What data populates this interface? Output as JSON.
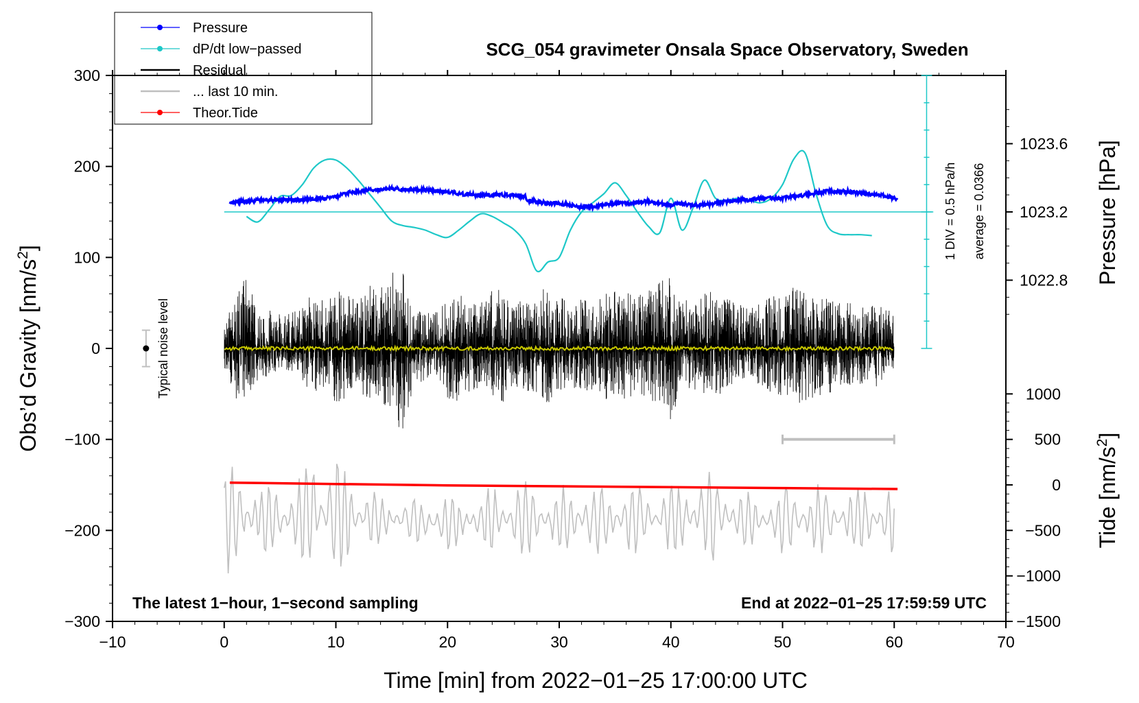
{
  "chart_data": {
    "type": "line",
    "title": "SCG_054 gravimeter Onsala Space Observatory, Sweden",
    "xlabel": "Time [min] from 2022−01−25 17:00:00 UTC",
    "ylabel": "Obs’d Gravity [nm/s",
    "ylabel_sup": "2",
    "ylabel_end": "]",
    "y2label": "Pressure [hPa]",
    "y3label": "Tide [nm/s",
    "y3label_sup": "2",
    "y3label_end": "]",
    "xlim": [
      -10,
      70
    ],
    "ylim": [
      -300,
      300
    ],
    "xticks": [
      -10,
      0,
      10,
      20,
      30,
      40,
      50,
      60,
      70
    ],
    "xtick_labels": [
      "−10",
      "0",
      "10",
      "20",
      "30",
      "40",
      "50",
      "60",
      "70"
    ],
    "yticks": [
      300,
      200,
      100,
      0,
      -100,
      -200,
      -300
    ],
    "ytick_labels": [
      "300",
      "200",
      "100",
      "0",
      "−100",
      "−200",
      "−300"
    ],
    "pressure_ticks": [
      1023.6,
      1023.2,
      1022.8
    ],
    "pressure_tick_labels": [
      "1023.6",
      "1023.2",
      "1022.8"
    ],
    "pressure_axis_map": {
      "value_a": 1023.2,
      "gravity_a": 150,
      "value_b": 1023.6,
      "gravity_b": 225
    },
    "tide_ticks": [
      1000,
      500,
      0,
      -500,
      -1000,
      -1500
    ],
    "tide_tick_labels": [
      "1000",
      "500",
      "0",
      "−500",
      "−1000",
      "−1500"
    ],
    "tide_axis_map": {
      "value_a": 0,
      "gravity_a": -150,
      "value_b": -1500,
      "gravity_b": -300
    },
    "legend": [
      {
        "label": "Pressure",
        "color": "#0000ff",
        "marker": true
      },
      {
        "label": "dP/dt low−passed",
        "color": "#1ec8c8",
        "marker": true
      },
      {
        "label": "Residual",
        "color": "#000000",
        "marker": false
      },
      {
        "label": "... last 10 min.",
        "color": "#bfbfbf",
        "marker": false
      },
      {
        "label": "Theor.Tide",
        "color": "#ff0000",
        "marker": true
      }
    ],
    "legend_position": "top-left",
    "annotations": {
      "noise_label": "Typical noise level",
      "noise_level": {
        "x": -7,
        "center": 0,
        "half_range": 20
      },
      "dpdt_scale": "1 DIV = 0.5 hPa/h",
      "dpdt_average": "average = 0.0366",
      "footer_left": "The latest 1−hour, 1−second sampling",
      "footer_right": "End at 2022−01−25 17:59:59 UTC",
      "last10_bar": {
        "x_start": 50,
        "x_end": 60,
        "y": -100
      }
    },
    "series": [
      {
        "name": "Pressure",
        "color": "#0000ff",
        "axis": "pressure_hPa",
        "x": [
          0.5,
          1,
          2,
          3,
          4,
          5,
          6,
          7,
          8,
          9,
          10,
          11,
          12,
          13,
          14,
          15,
          16,
          17,
          18,
          19,
          20,
          21,
          22,
          23,
          24,
          25,
          26,
          27,
          27.1,
          28,
          29,
          30,
          31,
          32,
          33,
          34,
          35,
          36,
          37,
          38,
          39,
          40,
          41,
          42,
          43,
          44,
          45,
          46,
          47,
          48,
          49,
          50,
          51,
          52,
          53,
          54,
          55,
          56,
          57,
          58,
          59,
          60,
          60.3
        ],
        "values": [
          1023.25,
          1023.26,
          1023.26,
          1023.27,
          1023.27,
          1023.27,
          1023.27,
          1023.27,
          1023.28,
          1023.28,
          1023.29,
          1023.31,
          1023.32,
          1023.33,
          1023.33,
          1023.34,
          1023.33,
          1023.33,
          1023.33,
          1023.32,
          1023.32,
          1023.31,
          1023.3,
          1023.3,
          1023.3,
          1023.3,
          1023.3,
          1023.29,
          1023.27,
          1023.26,
          1023.25,
          1023.25,
          1023.24,
          1023.23,
          1023.23,
          1023.24,
          1023.25,
          1023.25,
          1023.26,
          1023.26,
          1023.25,
          1023.24,
          1023.25,
          1023.24,
          1023.24,
          1023.25,
          1023.26,
          1023.27,
          1023.27,
          1023.28,
          1023.28,
          1023.28,
          1023.29,
          1023.3,
          1023.31,
          1023.32,
          1023.32,
          1023.32,
          1023.31,
          1023.3,
          1023.3,
          1023.28,
          1023.28
        ]
      },
      {
        "name": "dP/dt low-passed",
        "color": "#1ec8c8",
        "axis": "gravity",
        "x": [
          2,
          3,
          4,
          5,
          6,
          7,
          8,
          9,
          10,
          11,
          12,
          13,
          14,
          15,
          16,
          17,
          18,
          19,
          20,
          21,
          22,
          23,
          24,
          25,
          26,
          27,
          28,
          29,
          30,
          31,
          32,
          33,
          34,
          35,
          36,
          37,
          38,
          39,
          40,
          41,
          42,
          43,
          44,
          45,
          46,
          47,
          48,
          49,
          50,
          51,
          52,
          53,
          54,
          55,
          56,
          57,
          58
        ],
        "values": [
          145,
          139,
          152,
          167,
          168,
          180,
          198,
          207,
          207,
          198,
          185,
          170,
          155,
          140,
          135,
          133,
          130,
          125,
          122,
          130,
          140,
          148,
          145,
          138,
          130,
          115,
          85,
          95,
          100,
          130,
          150,
          160,
          170,
          182,
          168,
          150,
          134,
          127,
          165,
          130,
          155,
          185,
          165,
          163,
          165,
          163,
          160,
          165,
          180,
          208,
          215,
          170,
          135,
          126,
          125,
          125,
          124
        ]
      },
      {
        "name": "Residual",
        "color": "#000000",
        "axis": "gravity",
        "x_range": [
          0,
          60
        ],
        "envelope": [
          {
            "x": 0,
            "min": -27,
            "max": 30
          },
          {
            "x": 1,
            "min": -55,
            "max": 55
          },
          {
            "x": 2,
            "min": -55,
            "max": 82
          },
          {
            "x": 3,
            "min": -35,
            "max": 45
          },
          {
            "x": 4,
            "min": -30,
            "max": 45
          },
          {
            "x": 5,
            "min": -30,
            "max": 40
          },
          {
            "x": 6,
            "min": -25,
            "max": 40
          },
          {
            "x": 7,
            "min": -40,
            "max": 50
          },
          {
            "x": 8,
            "min": -50,
            "max": 60
          },
          {
            "x": 9,
            "min": -45,
            "max": 55
          },
          {
            "x": 10,
            "min": -65,
            "max": 65
          },
          {
            "x": 11,
            "min": -55,
            "max": 60
          },
          {
            "x": 12,
            "min": -50,
            "max": 60
          },
          {
            "x": 13,
            "min": -55,
            "max": 70
          },
          {
            "x": 14,
            "min": -60,
            "max": 75
          },
          {
            "x": 15,
            "min": -70,
            "max": 85
          },
          {
            "x": 16,
            "min": -105,
            "max": 90
          },
          {
            "x": 17,
            "min": -40,
            "max": 45
          },
          {
            "x": 18,
            "min": -35,
            "max": 40
          },
          {
            "x": 19,
            "min": -30,
            "max": 40
          },
          {
            "x": 20,
            "min": -55,
            "max": 60
          },
          {
            "x": 21,
            "min": -60,
            "max": 65
          },
          {
            "x": 22,
            "min": -50,
            "max": 55
          },
          {
            "x": 23,
            "min": -45,
            "max": 50
          },
          {
            "x": 24,
            "min": -55,
            "max": 65
          },
          {
            "x": 25,
            "min": -60,
            "max": 70
          },
          {
            "x": 26,
            "min": -45,
            "max": 55
          },
          {
            "x": 27,
            "min": -45,
            "max": 50
          },
          {
            "x": 28,
            "min": -55,
            "max": 60
          },
          {
            "x": 29,
            "min": -60,
            "max": 70
          },
          {
            "x": 30,
            "min": -55,
            "max": 65
          },
          {
            "x": 31,
            "min": -45,
            "max": 55
          },
          {
            "x": 32,
            "min": -50,
            "max": 60
          },
          {
            "x": 33,
            "min": -45,
            "max": 55
          },
          {
            "x": 34,
            "min": -55,
            "max": 60
          },
          {
            "x": 35,
            "min": -60,
            "max": 70
          },
          {
            "x": 36,
            "min": -55,
            "max": 65
          },
          {
            "x": 37,
            "min": -50,
            "max": 60
          },
          {
            "x": 38,
            "min": -55,
            "max": 65
          },
          {
            "x": 39,
            "min": -65,
            "max": 75
          },
          {
            "x": 40,
            "min": -80,
            "max": 78
          },
          {
            "x": 41,
            "min": -45,
            "max": 55
          },
          {
            "x": 42,
            "min": -45,
            "max": 50
          },
          {
            "x": 43,
            "min": -50,
            "max": 60
          },
          {
            "x": 44,
            "min": -55,
            "max": 65
          },
          {
            "x": 45,
            "min": -45,
            "max": 55
          },
          {
            "x": 46,
            "min": -40,
            "max": 50
          },
          {
            "x": 47,
            "min": -40,
            "max": 45
          },
          {
            "x": 48,
            "min": -45,
            "max": 55
          },
          {
            "x": 49,
            "min": -50,
            "max": 60
          },
          {
            "x": 50,
            "min": -55,
            "max": 65
          },
          {
            "x": 51,
            "min": -60,
            "max": 70
          },
          {
            "x": 52,
            "min": -60,
            "max": 60
          },
          {
            "x": 53,
            "min": -55,
            "max": 55
          },
          {
            "x": 54,
            "min": -50,
            "max": 55
          },
          {
            "x": 55,
            "min": -45,
            "max": 50
          },
          {
            "x": 56,
            "min": -40,
            "max": 50
          },
          {
            "x": 57,
            "min": -40,
            "max": 45
          },
          {
            "x": 58,
            "min": -45,
            "max": 50
          },
          {
            "x": 59,
            "min": -40,
            "max": 45
          },
          {
            "x": 60,
            "min": -35,
            "max": 40
          }
        ]
      },
      {
        "name": "Residual low-passed",
        "color": "#c8c800",
        "axis": "gravity",
        "x": [
          0,
          60
        ],
        "values": [
          0,
          0
        ]
      },
      {
        "name": "... last 10 min.",
        "color": "#bfbfbf",
        "axis": "gravity",
        "x_range": [
          0,
          60
        ],
        "center": -200,
        "envelope": [
          {
            "x": 0,
            "min": -250,
            "max": -125
          },
          {
            "x": 2,
            "min": -235,
            "max": -135
          },
          {
            "x": 4,
            "min": -225,
            "max": -150
          },
          {
            "x": 6,
            "min": -230,
            "max": -145
          },
          {
            "x": 8,
            "min": -245,
            "max": -120
          },
          {
            "x": 10,
            "min": -250,
            "max": -115
          },
          {
            "x": 12,
            "min": -230,
            "max": -140
          },
          {
            "x": 14,
            "min": -215,
            "max": -160
          },
          {
            "x": 16,
            "min": -215,
            "max": -160
          },
          {
            "x": 18,
            "min": -215,
            "max": -165
          },
          {
            "x": 20,
            "min": -225,
            "max": -160
          },
          {
            "x": 22,
            "min": -215,
            "max": -165
          },
          {
            "x": 24,
            "min": -225,
            "max": -150
          },
          {
            "x": 26,
            "min": -235,
            "max": -140
          },
          {
            "x": 28,
            "min": -225,
            "max": -150
          },
          {
            "x": 30,
            "min": -225,
            "max": -150
          },
          {
            "x": 32,
            "min": -230,
            "max": -145
          },
          {
            "x": 34,
            "min": -225,
            "max": -150
          },
          {
            "x": 36,
            "min": -230,
            "max": -145
          },
          {
            "x": 38,
            "min": -220,
            "max": -155
          },
          {
            "x": 40,
            "min": -225,
            "max": -150
          },
          {
            "x": 42,
            "min": -230,
            "max": -140
          },
          {
            "x": 44,
            "min": -235,
            "max": -130
          },
          {
            "x": 46,
            "min": -225,
            "max": -150
          },
          {
            "x": 48,
            "min": -215,
            "max": -165
          },
          {
            "x": 50,
            "min": -230,
            "max": -150
          },
          {
            "x": 52,
            "min": -230,
            "max": -145
          },
          {
            "x": 54,
            "min": -225,
            "max": -150
          },
          {
            "x": 56,
            "min": -220,
            "max": -155
          },
          {
            "x": 58,
            "min": -225,
            "max": -150
          },
          {
            "x": 60,
            "min": -230,
            "max": -145
          }
        ]
      },
      {
        "name": "Theor.Tide",
        "color": "#ff0000",
        "axis": "tide",
        "x": [
          0.5,
          10,
          20,
          30,
          40,
          50,
          60.3
        ],
        "values": [
          25,
          10,
          -5,
          -15,
          -25,
          -35,
          -45
        ]
      }
    ]
  }
}
